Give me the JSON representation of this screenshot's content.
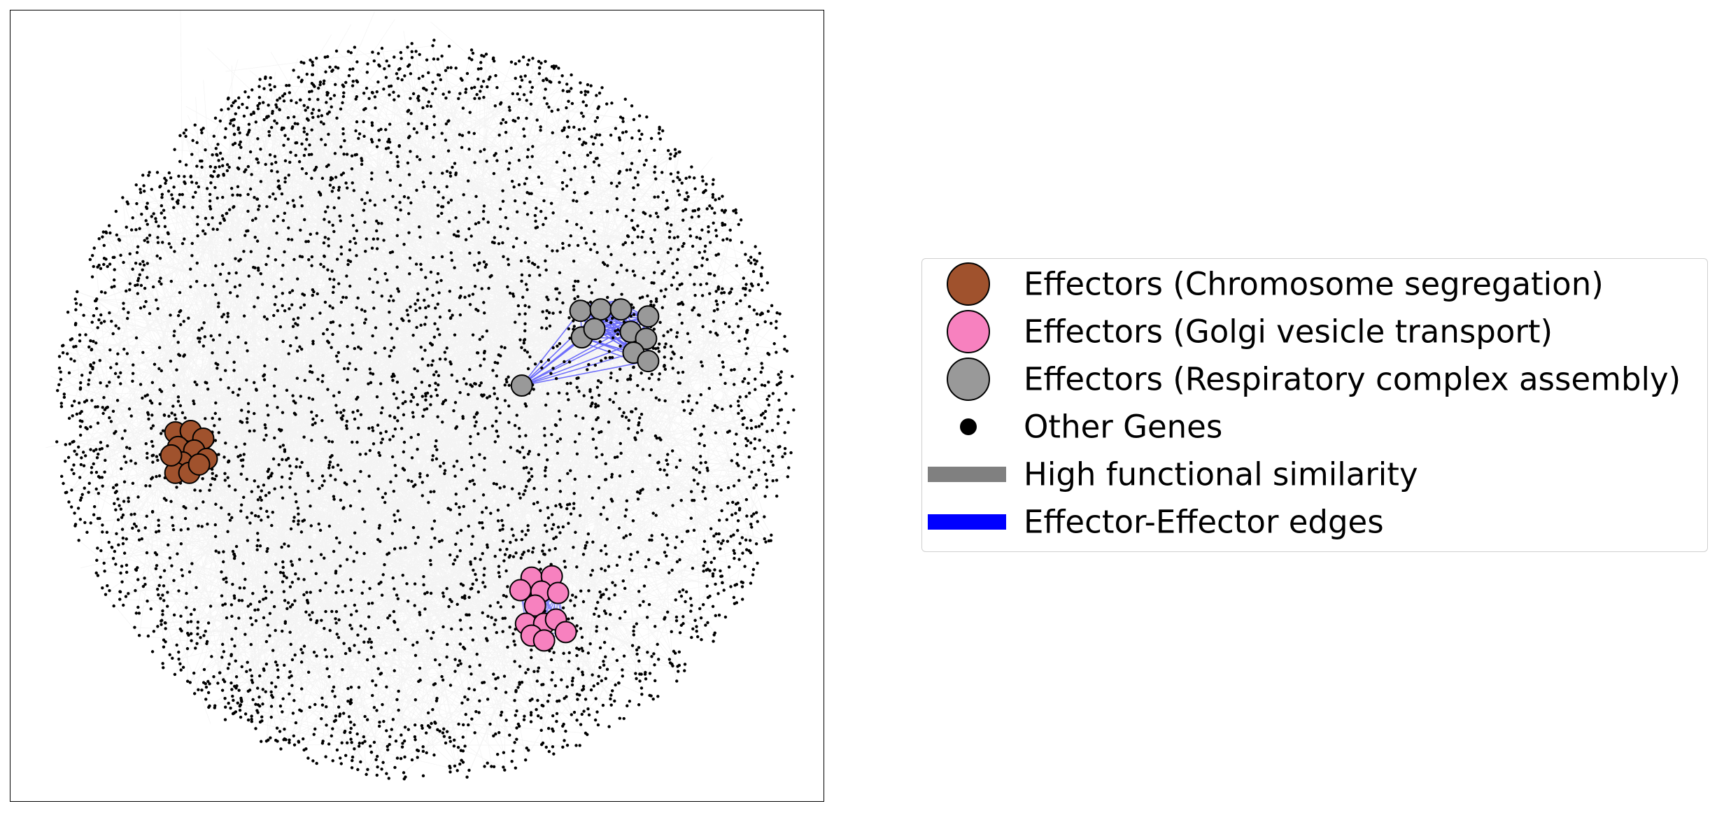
{
  "legend": {
    "items": [
      {
        "label": "Effectors (Chromosome segregation)",
        "kind": "circle",
        "color": "#A0522D"
      },
      {
        "label": "Effectors (Golgi vesicle transport)",
        "kind": "circle",
        "color": "#F781BF"
      },
      {
        "label": "Effectors (Respiratory complex assembly)",
        "kind": "circle",
        "color": "#999999"
      },
      {
        "label": "Other Genes",
        "kind": "dot",
        "color": "#000000"
      },
      {
        "label": "High functional similarity",
        "kind": "line",
        "color": "#808080"
      },
      {
        "label": "Effector-Effector edges",
        "kind": "line",
        "color": "#0000FF"
      }
    ]
  },
  "colors": {
    "chromosome": "#A0522D",
    "golgi": "#F781BF",
    "respiratory": "#999999",
    "other": "#000000",
    "edge": "#808080",
    "effector_edge": "#0000FF"
  }
}
